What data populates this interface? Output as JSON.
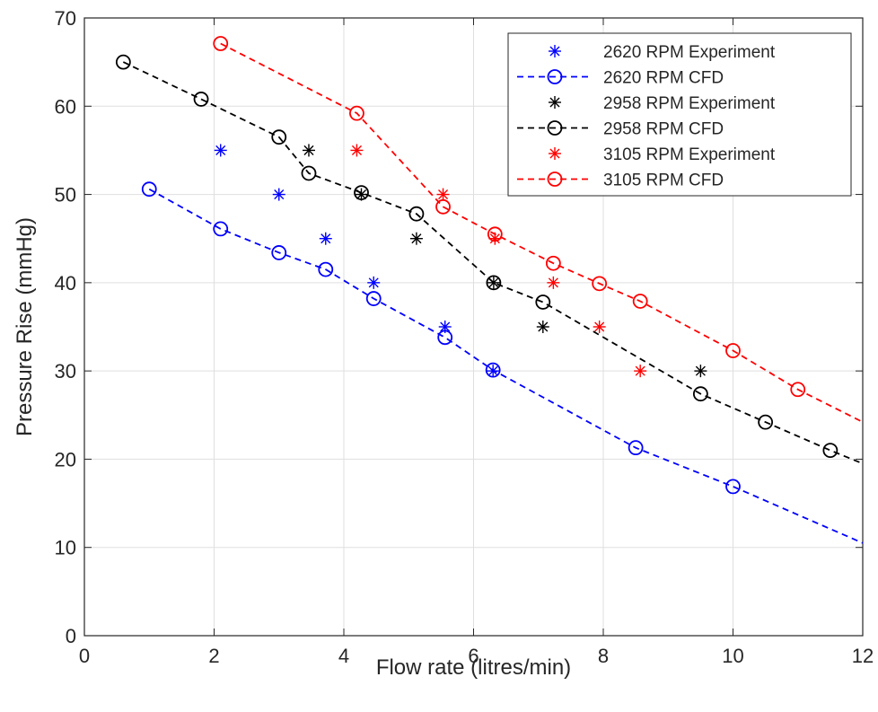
{
  "chart_data": {
    "type": "line",
    "title": "",
    "xlabel": "Flow rate (litres/min)",
    "ylabel": "Pressure Rise (mmHg)",
    "xlim": [
      0,
      12
    ],
    "ylim": [
      0,
      70
    ],
    "xticks": [
      0,
      2,
      4,
      6,
      8,
      10,
      12
    ],
    "yticks": [
      0,
      10,
      20,
      30,
      40,
      50,
      60,
      70
    ],
    "grid": true,
    "legend_position": "top-right",
    "series": [
      {
        "name": "2620 RPM Experiment",
        "kind": "markers",
        "marker": "asterisk",
        "color": "#0000ff",
        "x": [
          2.1,
          3.0,
          3.72,
          4.46,
          5.56,
          6.3
        ],
        "y": [
          55,
          50,
          45,
          40,
          35,
          30
        ]
      },
      {
        "name": "2620 RPM CFD",
        "kind": "dashed-line-circles",
        "marker": "circle",
        "color": "#0000ff",
        "x": [
          1.0,
          2.1,
          3.0,
          3.72,
          4.46,
          5.56,
          6.3,
          8.5,
          10.0,
          12.0
        ],
        "y": [
          50.6,
          46.1,
          43.4,
          41.5,
          38.2,
          33.8,
          30.1,
          21.3,
          16.9,
          10.5
        ],
        "marked": [
          true,
          true,
          true,
          true,
          true,
          true,
          true,
          true,
          true,
          false
        ]
      },
      {
        "name": "2958 RPM Experiment",
        "kind": "markers",
        "marker": "asterisk",
        "color": "#000000",
        "x": [
          3.46,
          4.27,
          5.12,
          6.31,
          7.07,
          9.5
        ],
        "y": [
          55,
          50,
          45,
          40,
          35,
          30
        ]
      },
      {
        "name": "2958 RPM CFD",
        "kind": "dashed-line-circles",
        "marker": "circle",
        "color": "#000000",
        "x": [
          0.6,
          1.8,
          3.0,
          3.46,
          4.27,
          5.12,
          6.31,
          7.07,
          9.5,
          10.5,
          11.5,
          12.0
        ],
        "y": [
          65.0,
          60.8,
          56.5,
          52.4,
          50.2,
          47.8,
          40.0,
          37.8,
          27.4,
          24.2,
          21.0,
          19.5
        ],
        "marked": [
          true,
          true,
          true,
          true,
          true,
          true,
          true,
          true,
          true,
          true,
          true,
          false
        ]
      },
      {
        "name": "3105 RPM Experiment",
        "kind": "markers",
        "marker": "asterisk",
        "color": "#ff0000",
        "x": [
          4.2,
          5.53,
          6.33,
          7.23,
          7.94,
          8.57
        ],
        "y": [
          55,
          50,
          45,
          40,
          35,
          30
        ]
      },
      {
        "name": "3105 RPM CFD",
        "kind": "dashed-line-circles",
        "marker": "circle",
        "color": "#ff0000",
        "x": [
          2.1,
          4.2,
          5.53,
          6.33,
          7.23,
          7.94,
          8.57,
          10.0,
          11.0,
          12.0
        ],
        "y": [
          67.1,
          59.2,
          48.6,
          45.5,
          42.2,
          39.9,
          37.9,
          32.3,
          27.9,
          24.2
        ],
        "marked": [
          true,
          true,
          true,
          true,
          true,
          true,
          true,
          true,
          true,
          false
        ]
      }
    ]
  }
}
